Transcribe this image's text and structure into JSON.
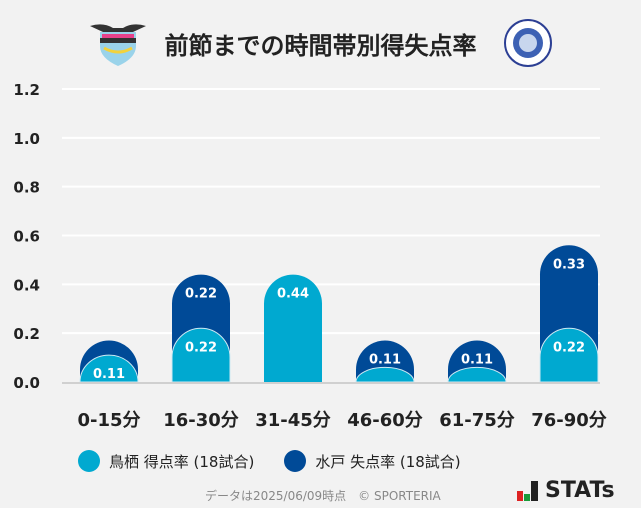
{
  "title": "前節までの時間帯別得失点率",
  "logos": {
    "left": "sagan tosu",
    "right": "mito hollyhock"
  },
  "legend": [
    {
      "label": "鳥栖 得点率 (18試合)",
      "color": "#00a9d0"
    },
    {
      "label": "水戸 失点率 (18試合)",
      "color": "#004a97"
    }
  ],
  "footer": "データは2025/06/09時点　© SPORTERIA",
  "brand": "STATs",
  "chart_data": {
    "type": "bar",
    "title": "前節までの時間帯別得失点率",
    "categories": [
      "0-15分",
      "16-30分",
      "31-45分",
      "46-60分",
      "61-75分",
      "76-90分"
    ],
    "series": [
      {
        "name": "鳥栖 得点率 (18試合)",
        "values": [
          0.11,
          0.22,
          0.44,
          0.06,
          0.06,
          0.22
        ],
        "labels": [
          "0.11",
          "0.22",
          "0.44",
          "",
          "",
          "0.22"
        ],
        "color": "#00a9d0"
      },
      {
        "name": "水戸 失点率 (18試合)",
        "values": [
          0.17,
          0.44,
          0.0,
          0.17,
          0.17,
          0.56
        ],
        "labels": [
          "",
          "0.22",
          "",
          "0.11",
          "0.11",
          "0.33"
        ],
        "color": "#004a97"
      }
    ],
    "yticks": [
      "0.0",
      "0.2",
      "0.4",
      "0.6",
      "0.8",
      "1.0",
      "1.2"
    ],
    "ylim": [
      0,
      1.2
    ],
    "grid": true,
    "legend_position": "bottom"
  }
}
